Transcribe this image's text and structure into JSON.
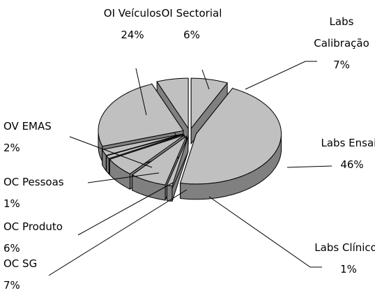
{
  "chart_data": {
    "type": "pie",
    "categories": [
      "Labs Calibração",
      "Labs Ensaio",
      "Labs Clínicos",
      "OC SG",
      "OC Produto",
      "OC Pessoas",
      "OV EMAS",
      "OI Veículos",
      "OI Sectorial"
    ],
    "values": [
      7,
      46,
      1,
      7,
      6,
      1,
      2,
      24,
      6
    ],
    "value_labels": [
      "7%",
      "46%",
      "1%",
      "7%",
      "6%",
      "1%",
      "2%",
      "24%",
      "6%"
    ],
    "color": "#c0c0c0",
    "side_color": "#808080"
  }
}
